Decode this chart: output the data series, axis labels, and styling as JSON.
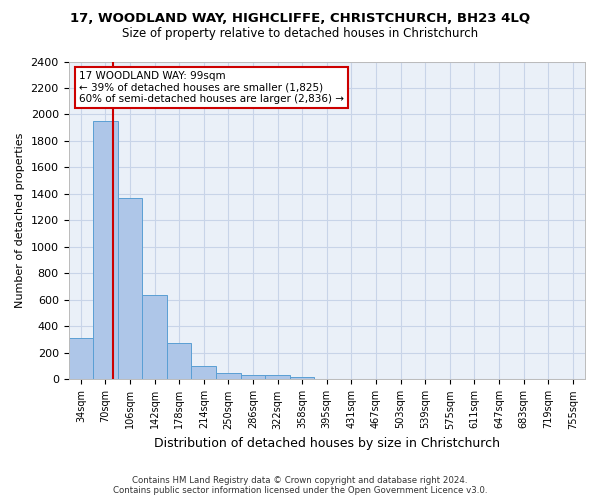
{
  "title1": "17, WOODLAND WAY, HIGHCLIFFE, CHRISTCHURCH, BH23 4LQ",
  "title2": "Size of property relative to detached houses in Christchurch",
  "xlabel": "Distribution of detached houses by size in Christchurch",
  "ylabel": "Number of detached properties",
  "footnote1": "Contains HM Land Registry data © Crown copyright and database right 2024.",
  "footnote2": "Contains public sector information licensed under the Open Government Licence v3.0.",
  "bin_labels": [
    "34sqm",
    "70sqm",
    "106sqm",
    "142sqm",
    "178sqm",
    "214sqm",
    "250sqm",
    "286sqm",
    "322sqm",
    "358sqm",
    "395sqm",
    "431sqm",
    "467sqm",
    "503sqm",
    "539sqm",
    "575sqm",
    "611sqm",
    "647sqm",
    "683sqm",
    "719sqm",
    "755sqm"
  ],
  "bar_values": [
    315,
    1950,
    1370,
    635,
    275,
    100,
    45,
    35,
    30,
    20,
    0,
    0,
    0,
    0,
    0,
    0,
    0,
    0,
    0,
    0,
    0
  ],
  "bar_color": "#aec6e8",
  "bar_edge_color": "#5a9fd4",
  "ylim": [
    0,
    2400
  ],
  "yticks": [
    0,
    200,
    400,
    600,
    800,
    1000,
    1200,
    1400,
    1600,
    1800,
    2000,
    2200,
    2400
  ],
  "property_label": "17 WOODLAND WAY: 99sqm",
  "annotation_line1": "← 39% of detached houses are smaller (1,825)",
  "annotation_line2": "60% of semi-detached houses are larger (2,836) →",
  "red_line_x": 1.306,
  "red_line_color": "#cc0000",
  "annotation_box_color": "#cc0000",
  "background_color": "#ffffff",
  "axes_bg_color": "#eaf0f8",
  "grid_color": "#c8d4e8"
}
